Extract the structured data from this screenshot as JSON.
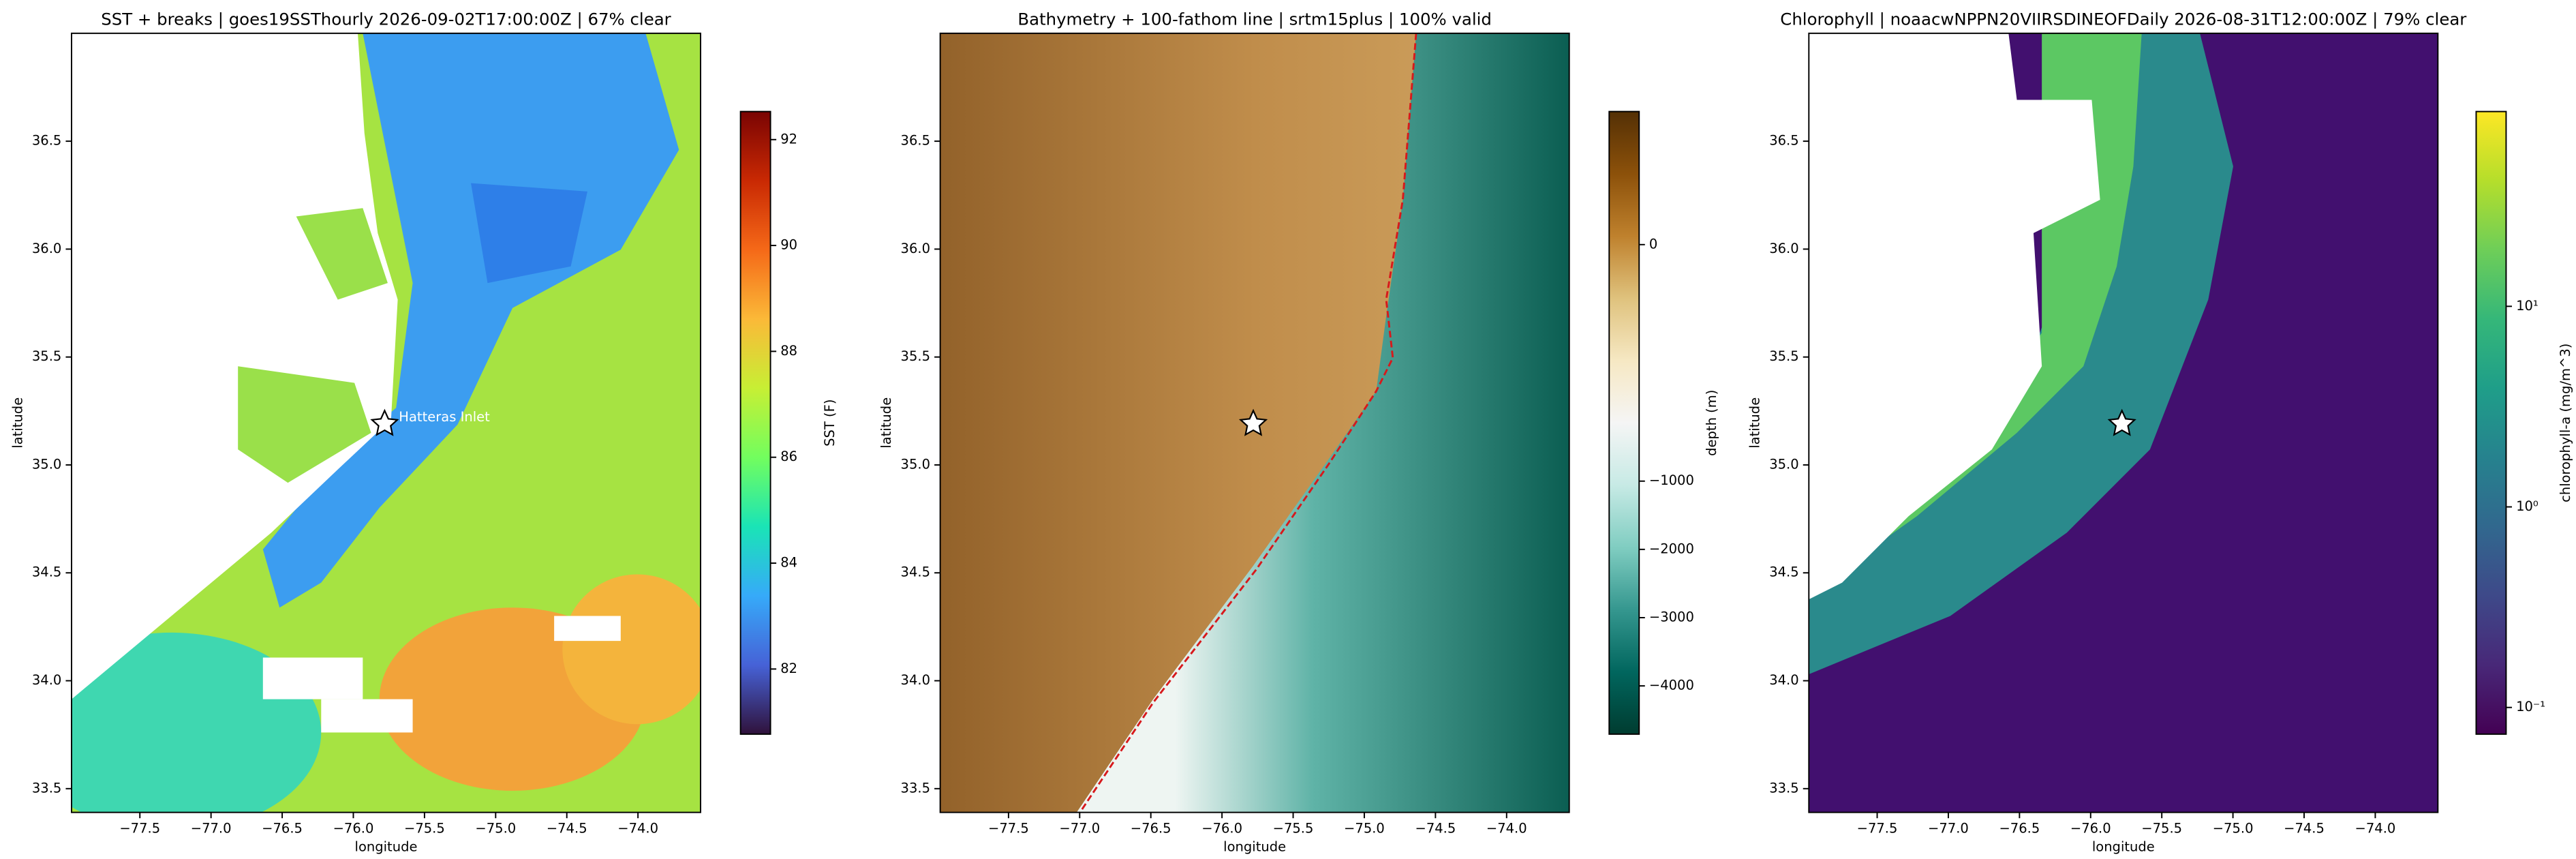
{
  "chart_data": [
    {
      "type": "map",
      "title": "SST + breaks  |  goes19SSThourly 2026-09-02T17:00:00Z  |  67% clear",
      "xlabel": "longitude",
      "ylabel": "latitude",
      "xlim": [
        -77.98,
        -73.56
      ],
      "ylim": [
        33.39,
        37.0
      ],
      "xticks": [
        {
          "value": -77.5,
          "label": "−77.5"
        },
        {
          "value": -77.0,
          "label": "−77.0"
        },
        {
          "value": -76.5,
          "label": "−76.5"
        },
        {
          "value": -76.0,
          "label": "−76.0"
        },
        {
          "value": -75.5,
          "label": "−75.5"
        },
        {
          "value": -75.0,
          "label": "−75.0"
        },
        {
          "value": -74.5,
          "label": "−74.5"
        },
        {
          "value": -74.0,
          "label": "−74.0"
        }
      ],
      "yticks": [
        33.5,
        {
          "value": 34.0,
          "label": "34.0"
        },
        34.5,
        {
          "value": 35.0,
          "label": "35.0"
        },
        35.5,
        {
          "value": 36.0,
          "label": "36.0"
        },
        36.5
      ],
      "marker": {
        "x": -75.78,
        "y": 35.19
      },
      "annotation": {
        "text": "Hatteras Inlet",
        "x": -75.68,
        "y": 35.22
      },
      "colorbar": {
        "label": "SST (F)",
        "scale": "linear",
        "clim": [
          80.77,
          92.53
        ],
        "ticks": [
          82,
          84,
          86,
          88,
          90,
          92
        ],
        "colors": [
          "#30123b",
          "#4662d7",
          "#36aaf9",
          "#1ae4b6",
          "#72fe5e",
          "#c7ef34",
          "#fbb938",
          "#f56918",
          "#c92903",
          "#7a0403"
        ]
      }
    },
    {
      "type": "map",
      "title": "Bathymetry + 100-fathom line  |  srtm15plus  |  100% valid",
      "xlabel": "longitude",
      "ylabel": "latitude",
      "xlim": [
        -77.98,
        -73.56
      ],
      "ylim": [
        33.39,
        37.0
      ],
      "xticks": [
        {
          "value": -77.5,
          "label": "−77.5"
        },
        {
          "value": -77.0,
          "label": "−77.0"
        },
        {
          "value": -76.5,
          "label": "−76.5"
        },
        {
          "value": -76.0,
          "label": "−76.0"
        },
        {
          "value": -75.5,
          "label": "−75.5"
        },
        {
          "value": -75.0,
          "label": "−75.0"
        },
        {
          "value": -74.5,
          "label": "−74.5"
        },
        {
          "value": -74.0,
          "label": "−74.0"
        }
      ],
      "yticks": [
        33.5,
        {
          "value": 34.0,
          "label": "34.0"
        },
        34.5,
        {
          "value": 35.0,
          "label": "35.0"
        },
        35.5,
        {
          "value": 36.0,
          "label": "36.0"
        },
        36.5
      ],
      "marker": {
        "x": -75.78,
        "y": 35.19
      },
      "colorbar": {
        "label": "depth (m)",
        "scale": "two-slope",
        "clim": [
          -4707,
          109
        ],
        "vcenter": -146,
        "ticks": [
          0,
          {
            "value": -1000,
            "label": "−1000"
          },
          {
            "value": -2000,
            "label": "−2000"
          },
          {
            "value": -3000,
            "label": "−3000"
          },
          {
            "value": -4000,
            "label": "−4000"
          }
        ],
        "colors": [
          "#003c30",
          "#01665e",
          "#35978f",
          "#80cdc1",
          "#c7eae5",
          "#f5f5f5",
          "#f6e8c3",
          "#dfc27d",
          "#bf812d",
          "#8c510a",
          "#543005"
        ]
      }
    },
    {
      "type": "map",
      "title": "Chlorophyll  |  noaacwNPPN20VIIRSDINEOFDaily 2026-08-31T12:00:00Z  |  79% clear",
      "xlabel": "longitude",
      "ylabel": "latitude",
      "xlim": [
        -77.98,
        -73.56
      ],
      "ylim": [
        33.39,
        37.0
      ],
      "xticks": [
        {
          "value": -77.5,
          "label": "−77.5"
        },
        {
          "value": -77.0,
          "label": "−77.0"
        },
        {
          "value": -76.5,
          "label": "−76.5"
        },
        {
          "value": -76.0,
          "label": "−76.0"
        },
        {
          "value": -75.5,
          "label": "−75.5"
        },
        {
          "value": -75.0,
          "label": "−75.0"
        },
        {
          "value": -74.5,
          "label": "−74.5"
        },
        {
          "value": -74.0,
          "label": "−74.0"
        }
      ],
      "yticks": [
        33.5,
        {
          "value": 34.0,
          "label": "34.0"
        },
        34.5,
        {
          "value": 35.0,
          "label": "35.0"
        },
        35.5,
        {
          "value": 36.0,
          "label": "36.0"
        },
        36.5
      ],
      "marker": {
        "x": -75.78,
        "y": 35.19
      },
      "colorbar": {
        "label": "chlorophyll-a (mg/m^3)",
        "scale": "log",
        "clim": [
          0.0736,
          93.6
        ],
        "ticks": [
          {
            "value": 0.1,
            "label": "10⁻¹"
          },
          {
            "value": 1,
            "label": "10⁰"
          },
          {
            "value": 10,
            "label": "10¹"
          }
        ],
        "colors": [
          "#440154",
          "#482878",
          "#3e4989",
          "#31688e",
          "#26828e",
          "#1f9e89",
          "#35b779",
          "#6ece58",
          "#b5de2b",
          "#fde725"
        ]
      }
    }
  ]
}
